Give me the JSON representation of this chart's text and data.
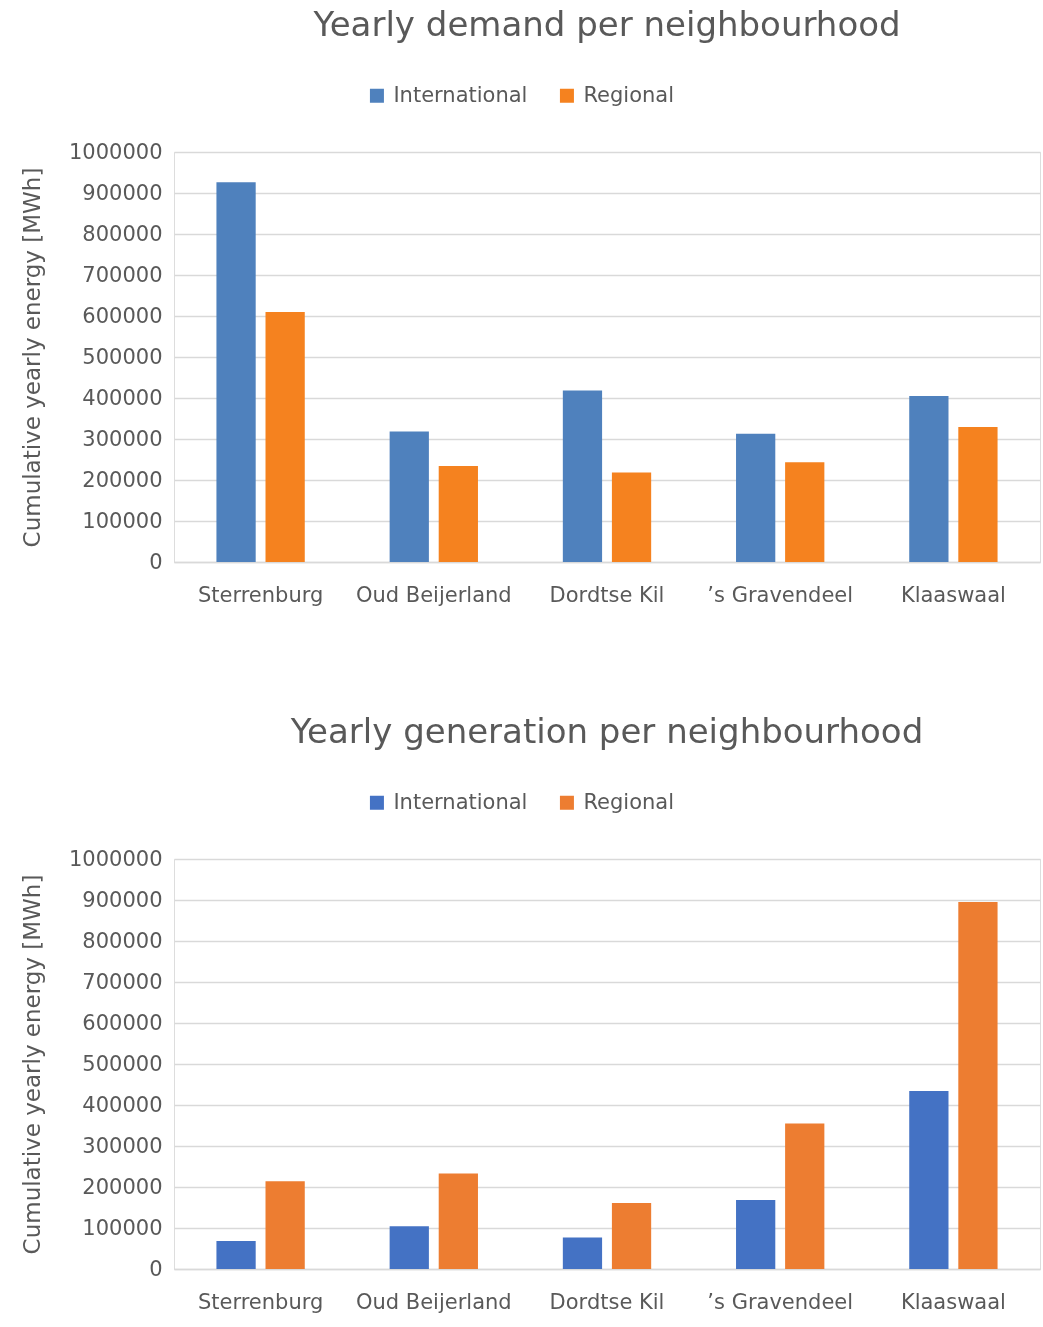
{
  "chart_data": [
    {
      "type": "bar",
      "title": "Yearly demand per neighbourhood",
      "ylabel": "Cumulative yearly energy [MWh]",
      "categories": [
        "Sterrenburg",
        "Oud Beijerland",
        "Dordtse Kil",
        "’s Gravendeel",
        "Klaaswaal"
      ],
      "series": [
        {
          "name": "International",
          "color": "#4f81bd",
          "values": [
            926000,
            318000,
            418000,
            313000,
            405000
          ]
        },
        {
          "name": "Regional",
          "color": "#f5821f",
          "values": [
            610000,
            234000,
            218000,
            243000,
            329000
          ]
        }
      ],
      "ylim": [
        0,
        1000000
      ],
      "yticks": [
        0,
        100000,
        200000,
        300000,
        400000,
        500000,
        600000,
        700000,
        800000,
        900000,
        1000000
      ],
      "grid": "y",
      "legend": "top"
    },
    {
      "type": "bar",
      "title": "Yearly generation per neighbourhood",
      "ylabel": "Cumulative yearly energy [MWh]",
      "categories": [
        "Sterrenburg",
        "Oud Beijerland",
        "Dordtse Kil",
        "’s Gravendeel",
        "Klaaswaal"
      ],
      "series": [
        {
          "name": "International",
          "color": "#4472c4",
          "values": [
            68000,
            104000,
            77000,
            168000,
            434000
          ]
        },
        {
          "name": "Regional",
          "color": "#ed7d31",
          "values": [
            214000,
            233000,
            161000,
            355000,
            895000
          ]
        }
      ],
      "ylim": [
        0,
        1000000
      ],
      "yticks": [
        0,
        100000,
        200000,
        300000,
        400000,
        500000,
        600000,
        700000,
        800000,
        900000,
        1000000
      ],
      "grid": "y",
      "legend": "top"
    }
  ]
}
